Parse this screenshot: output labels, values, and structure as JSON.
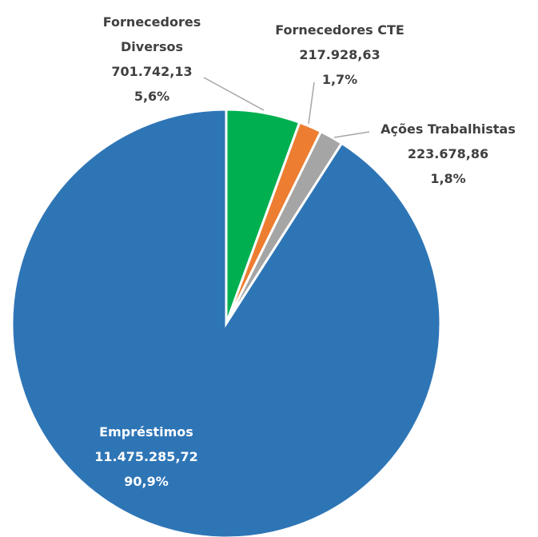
{
  "chart_data": {
    "type": "pie",
    "categories": [
      "Fornecedores Diversos",
      "Fornecedores CTE",
      "Ações Trabalhistas",
      "Empréstimos"
    ],
    "values": [
      701742.13,
      217928.63,
      223678.86,
      11475285.72
    ],
    "value_labels": [
      "701.742,13",
      "217.928,63",
      "223.678,86",
      "11.475.285,72"
    ],
    "percents": [
      5.6,
      1.7,
      1.8,
      90.9
    ],
    "percent_labels": [
      "5,6%",
      "1,7%",
      "1,8%",
      "90,9%"
    ],
    "colors": [
      "#00b050",
      "#ed7d31",
      "#a5a5a5",
      "#2e75b6"
    ]
  }
}
